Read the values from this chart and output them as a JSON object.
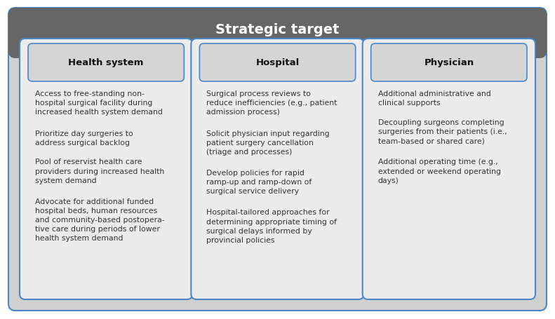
{
  "title": "Strategic target",
  "title_bg": "#666666",
  "title_text_color": "#ffffff",
  "outer_bg": "#c8c8c8",
  "outer_border_color": "#4a86c8",
  "col_bg": "#e8e8e8",
  "header_bg": "#d8d8d8",
  "text_color": "#333333",
  "columns": [
    {
      "header": "Health system",
      "bullets": [
        "Access to free-standing non-\nhospital surgical facility during\nincreased health system demand",
        "Prioritize day surgeries to\naddress surgical backlog",
        "Pool of reservist health care\nproviders during increased health\nsystem demand",
        "Advocate for additional funded\nhospital beds, human resources\nand community-based postopera-\ntive care during periods of lower\nhealth system demand"
      ]
    },
    {
      "header": "Hospital",
      "bullets": [
        "Surgical process reviews to\nreduce inefficiencies (e.g., patient\nadmission process)",
        "Solicit physician input regarding\npatient surgery cancellation\n(triage and processes)",
        "Develop policies for rapid\nramp-up and ramp-down of\nsurgical service delivery",
        "Hospital-tailored approaches for\ndetermining appropriate timing of\nsurgical delays informed by\nprovincial policies"
      ]
    },
    {
      "header": "Physician",
      "bullets": [
        "Additional administrative and\nclinical supports",
        "Decoupling surgeons completing\nsurgeries from their patients (i.e.,\nteam-based or shared care)",
        "Additional operating time (e.g.,\nextended or weekend operating\ndays)"
      ]
    }
  ],
  "fig_width": 7.91,
  "fig_height": 4.56,
  "dpi": 100
}
